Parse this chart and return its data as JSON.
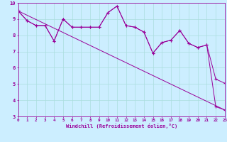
{
  "xlabel": "Windchill (Refroidissement éolien,°C)",
  "bg_color": "#cceeff",
  "line_color": "#990099",
  "grid_color": "#aadddd",
  "xmin": 0,
  "xmax": 23,
  "ymin": 3,
  "ymax": 10,
  "s1_x": [
    0,
    1,
    2,
    3,
    4,
    5,
    6,
    7,
    8,
    9,
    10,
    11,
    12,
    13,
    14,
    15,
    16,
    17,
    18,
    19,
    20,
    21,
    22,
    23
  ],
  "s1_y": [
    9.5,
    8.9,
    8.6,
    8.6,
    7.65,
    9.0,
    8.5,
    8.5,
    8.5,
    8.5,
    9.4,
    9.8,
    8.6,
    8.5,
    8.2,
    6.9,
    7.55,
    7.7,
    8.3,
    7.5,
    7.25,
    7.4,
    5.3,
    5.05
  ],
  "s2_x": [
    0,
    1,
    2,
    3,
    4,
    5,
    6,
    7,
    8,
    9,
    10,
    11,
    12,
    13,
    14,
    15,
    16,
    17,
    18,
    19,
    20,
    21,
    22,
    23
  ],
  "s2_y": [
    9.5,
    8.9,
    8.6,
    8.6,
    7.65,
    9.0,
    8.5,
    8.5,
    8.5,
    8.5,
    9.4,
    9.8,
    8.6,
    8.5,
    8.2,
    6.9,
    7.55,
    7.7,
    8.3,
    7.5,
    7.25,
    7.4,
    3.6,
    3.4
  ],
  "trend_x": [
    0,
    23
  ],
  "trend_y": [
    9.5,
    3.4
  ]
}
